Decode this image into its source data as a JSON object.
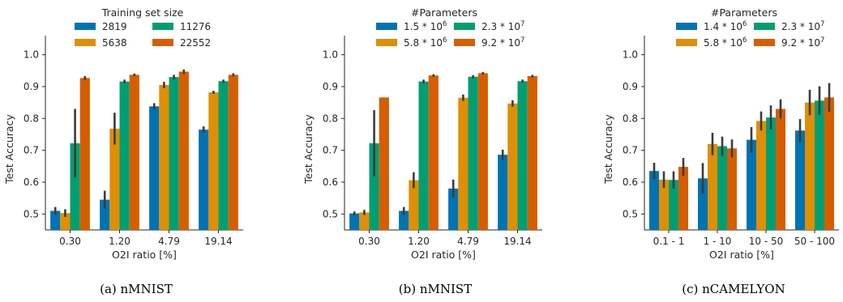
{
  "chart_data": [
    {
      "type": "bar",
      "caption": "(a) nMNIST",
      "legend_title": "Training set size",
      "xlabel": "O2I ratio [%]",
      "ylabel": "Test Accuracy",
      "ylim": [
        0.45,
        1.06
      ],
      "yticks": [
        "0.5",
        "0.6",
        "0.7",
        "0.8",
        "0.9",
        "1.0"
      ],
      "categories": [
        "0.30",
        "1.20",
        "4.79",
        "19.14"
      ],
      "series": [
        {
          "name": "2819",
          "values": [
            0.51,
            0.545,
            0.838,
            0.765
          ],
          "err": [
            0.012,
            0.028,
            0.01,
            0.01
          ],
          "color": "#0173b2"
        },
        {
          "name": "5638",
          "values": [
            0.503,
            0.768,
            0.905,
            0.882
          ],
          "err": [
            0.012,
            0.05,
            0.01,
            0.005
          ],
          "color": "#de8f05"
        },
        {
          "name": "11276",
          "values": [
            0.722,
            0.916,
            0.93,
            0.917
          ],
          "err": [
            0.108,
            0.006,
            0.007,
            0.005
          ],
          "color": "#029e73"
        },
        {
          "name": "22552",
          "values": [
            0.927,
            0.937,
            0.947,
            0.937
          ],
          "err": [
            0.006,
            0.004,
            0.007,
            0.005
          ],
          "color": "#d55e00"
        }
      ]
    },
    {
      "type": "bar",
      "caption": "(b) nMNIST",
      "legend_title": "#Parameters",
      "xlabel": "O2I ratio [%]",
      "ylabel": "Test Accuracy",
      "ylim": [
        0.45,
        1.06
      ],
      "yticks": [
        "0.5",
        "0.6",
        "0.7",
        "0.8",
        "0.9",
        "1.0"
      ],
      "categories": [
        "0.30",
        "1.20",
        "4.79",
        "19.14"
      ],
      "series": [
        {
          "name": "1.5 * 10",
          "exp": "6",
          "values": [
            0.502,
            0.51,
            0.58,
            0.686
          ],
          "err": [
            0.006,
            0.012,
            0.028,
            0.016
          ],
          "color": "#0173b2"
        },
        {
          "name": "5.8 * 10",
          "exp": "6",
          "values": [
            0.505,
            0.606,
            0.865,
            0.847
          ],
          "err": [
            0.008,
            0.025,
            0.01,
            0.01
          ],
          "color": "#de8f05"
        },
        {
          "name": "2.3 * 10",
          "exp": "7",
          "values": [
            0.722,
            0.916,
            0.931,
            0.917
          ],
          "err": [
            0.104,
            0.006,
            0.005,
            0.005
          ],
          "color": "#029e73"
        },
        {
          "name": "9.2 * 10",
          "exp": "7",
          "values": [
            0.866,
            0.935,
            0.942,
            0.933
          ],
          "err": [
            0.0,
            0.004,
            0.004,
            0.004
          ],
          "color": "#d55e00"
        }
      ]
    },
    {
      "type": "bar",
      "caption": "(c) nCAMELYON",
      "legend_title": "#Parameters",
      "xlabel": "O2I ratio [%]",
      "ylabel": "Test Accuracy",
      "ylim": [
        0.45,
        1.06
      ],
      "yticks": [
        "0.5",
        "0.6",
        "0.7",
        "0.8",
        "0.9",
        "1.0"
      ],
      "categories": [
        "0.1 - 1",
        "1 - 10",
        "10 - 50",
        "50 - 100"
      ],
      "series": [
        {
          "name": "1.4 * 10",
          "exp": "6",
          "values": [
            0.635,
            0.612,
            0.733,
            0.762
          ],
          "err": [
            0.026,
            0.048,
            0.04,
            0.036
          ],
          "color": "#0173b2"
        },
        {
          "name": "5.8 * 10",
          "exp": "6",
          "values": [
            0.608,
            0.72,
            0.792,
            0.85
          ],
          "err": [
            0.026,
            0.035,
            0.03,
            0.04
          ],
          "color": "#de8f05"
        },
        {
          "name": "2.3 * 10",
          "exp": "7",
          "values": [
            0.607,
            0.713,
            0.803,
            0.856
          ],
          "err": [
            0.027,
            0.03,
            0.038,
            0.045
          ],
          "color": "#029e73"
        },
        {
          "name": "9.2 * 10",
          "exp": "7",
          "values": [
            0.648,
            0.706,
            0.83,
            0.866
          ],
          "err": [
            0.028,
            0.028,
            0.03,
            0.045
          ],
          "color": "#d55e00"
        }
      ]
    }
  ]
}
